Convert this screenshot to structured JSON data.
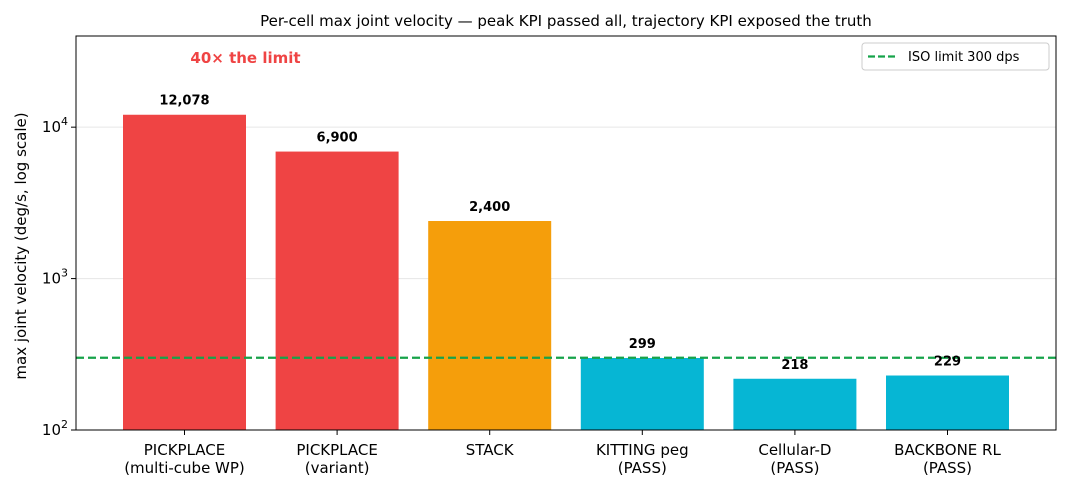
{
  "chart_data": {
    "type": "bar",
    "title": "Per-cell max joint velocity — peak KPI passed all, trajectory KPI exposed the truth",
    "ylabel": "max joint velocity (deg/s, log scale)",
    "xlabel": "",
    "y_scale": "log",
    "ylim": [
      100,
      40000
    ],
    "y_ticks": [
      {
        "value": 100,
        "base": "10",
        "exp": "2"
      },
      {
        "value": 1000,
        "base": "10",
        "exp": "3"
      },
      {
        "value": 10000,
        "base": "10",
        "exp": "4"
      }
    ],
    "grid": "y-major",
    "categories": [
      [
        "PICKPLACE",
        "(multi-cube WP)"
      ],
      [
        "PICKPLACE",
        "(variant)"
      ],
      [
        "STACK"
      ],
      [
        "KITTING peg",
        "(PASS)"
      ],
      [
        "Cellular-D",
        "(PASS)"
      ],
      [
        "BACKBONE RL",
        "(PASS)"
      ]
    ],
    "values": [
      12078,
      6900,
      2400,
      299,
      218,
      229
    ],
    "value_labels": [
      "12,078",
      "6,900",
      "2,400",
      "299",
      "218",
      "229"
    ],
    "colors": [
      "#ef4444",
      "#ef4444",
      "#f59e0b",
      "#06b6d4",
      "#06b6d4",
      "#06b6d4"
    ],
    "reference_line": {
      "value": 300,
      "label": "ISO limit  300 dps",
      "color": "#16a34a",
      "style": "dashed"
    },
    "legend_position": "top-right",
    "annotation": {
      "text": "40× the limit",
      "color": "#ef4444",
      "category_index": 0
    }
  }
}
